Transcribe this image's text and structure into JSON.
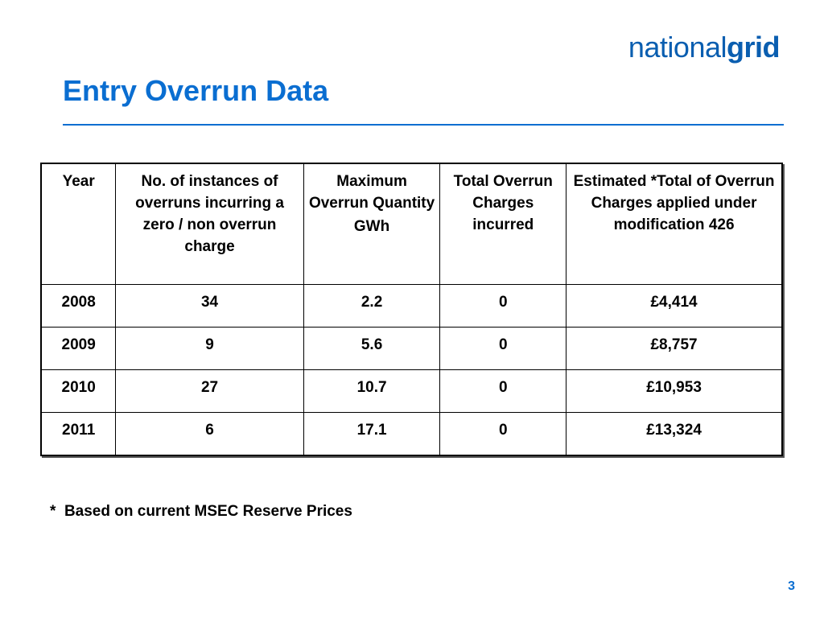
{
  "logo": {
    "light": "national",
    "bold": "grid"
  },
  "title": "Entry Overrun Data",
  "table": {
    "headers": [
      {
        "label": "Year"
      },
      {
        "label": "No. of instances of overruns incurring a zero / non overrun charge"
      },
      {
        "label": "Maximum Overrun Quantity",
        "unit": "GWh"
      },
      {
        "label": "Total Overrun Charges incurred"
      },
      {
        "label": "Estimated *Total of Overrun Charges applied under modification 426"
      }
    ],
    "rows": [
      {
        "year": "2008",
        "instances": "34",
        "max_quantity": "2.2",
        "total_charges": "0",
        "estimated_total": "£4,414"
      },
      {
        "year": "2009",
        "instances": "9",
        "max_quantity": "5.6",
        "total_charges": "0",
        "estimated_total": "£8,757"
      },
      {
        "year": "2010",
        "instances": "27",
        "max_quantity": "10.7",
        "total_charges": "0",
        "estimated_total": "£10,953"
      },
      {
        "year": "2011",
        "instances": "6",
        "max_quantity": "17.1",
        "total_charges": "0",
        "estimated_total": "£13,324"
      }
    ]
  },
  "footnote": "*  Based on current MSEC Reserve Prices",
  "page_number": "3",
  "colors": {
    "brand_blue": "#0a6ed1",
    "logo_blue": "#0a5eb0"
  }
}
